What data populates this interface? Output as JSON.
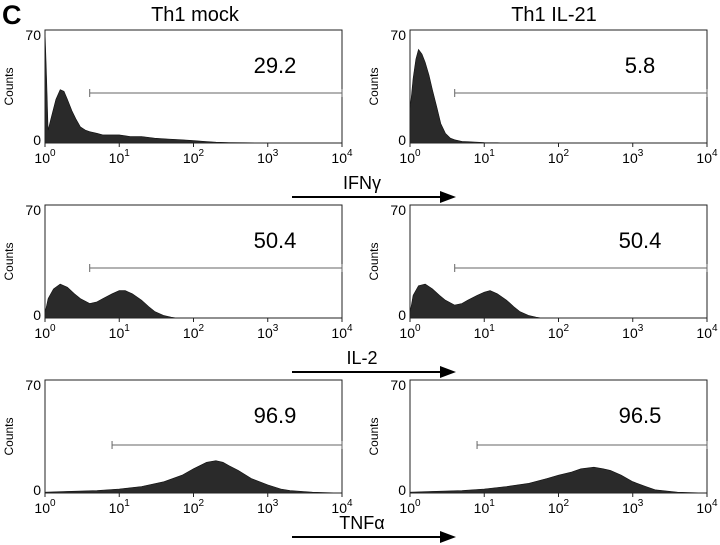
{
  "panel_label": "C",
  "columns": [
    "Th1 mock",
    "Th1 IL-21"
  ],
  "marker_labels": [
    "IFNγ",
    "IL-2",
    "TNFα"
  ],
  "axis": {
    "y_label": "Counts",
    "y_ticks": [
      "0",
      "70"
    ],
    "x_ticks": [
      "10^0",
      "10^1",
      "10^2",
      "10^3",
      "10^4"
    ]
  },
  "chart_data": [
    {
      "type": "area",
      "row": 0,
      "col": 0,
      "marker": "IFNγ",
      "condition": "Th1 mock",
      "xscale": "log",
      "xlim": [
        1,
        10000
      ],
      "ylim": [
        0,
        70
      ],
      "ylabel": "Counts",
      "gate_percent": "29.2",
      "gate_range": [
        4,
        10000
      ],
      "x": [
        1.0,
        1.05,
        1.1,
        1.2,
        1.4,
        1.6,
        1.8,
        2.0,
        2.3,
        2.6,
        3.0,
        3.5,
        4.0,
        5,
        6,
        8,
        10,
        14,
        20,
        30,
        45,
        70,
        100,
        140,
        200,
        300,
        500,
        1000,
        10000
      ],
      "values": [
        70,
        40,
        8,
        15,
        27,
        33,
        32,
        27,
        20,
        15,
        10,
        8,
        7,
        6,
        5,
        5,
        5,
        4,
        4,
        3,
        2.5,
        2,
        1.5,
        1,
        0.5,
        0.3,
        0.2,
        0,
        0
      ]
    },
    {
      "type": "area",
      "row": 0,
      "col": 1,
      "marker": "IFNγ",
      "condition": "Th1 IL-21",
      "xscale": "log",
      "xlim": [
        1,
        10000
      ],
      "ylim": [
        0,
        70
      ],
      "ylabel": "Counts",
      "gate_percent": "5.8",
      "gate_range": [
        4,
        10000
      ],
      "x": [
        1.0,
        1.1,
        1.2,
        1.3,
        1.45,
        1.6,
        1.8,
        2.0,
        2.3,
        2.6,
        3.0,
        3.5,
        4.0,
        5,
        6,
        8,
        10,
        15,
        20,
        30,
        10000
      ],
      "values": [
        20,
        40,
        52,
        58,
        55,
        50,
        42,
        33,
        22,
        12,
        6,
        3,
        2,
        1,
        0.8,
        0.5,
        0.3,
        0.2,
        0,
        0,
        0
      ]
    },
    {
      "type": "area",
      "row": 1,
      "col": 0,
      "marker": "IL-2",
      "condition": "Th1 mock",
      "xscale": "log",
      "xlim": [
        1,
        10000
      ],
      "ylim": [
        0,
        70
      ],
      "ylabel": "Counts",
      "gate_percent": "50.4",
      "gate_range": [
        4,
        10000
      ],
      "x": [
        1.0,
        1.1,
        1.3,
        1.6,
        2.0,
        2.5,
        3.0,
        4.0,
        5,
        6,
        8,
        10,
        12,
        15,
        20,
        25,
        30,
        40,
        50,
        60,
        10000
      ],
      "values": [
        3,
        12,
        18,
        21,
        19,
        15,
        12,
        9,
        10,
        12,
        15,
        17,
        17,
        15,
        11,
        7,
        4,
        1.5,
        0.5,
        0,
        0
      ]
    },
    {
      "type": "area",
      "row": 1,
      "col": 1,
      "marker": "IL-2",
      "condition": "Th1 IL-21",
      "xscale": "log",
      "xlim": [
        1,
        10000
      ],
      "ylim": [
        0,
        70
      ],
      "ylabel": "Counts",
      "gate_percent": "50.4",
      "gate_range": [
        4,
        10000
      ],
      "x": [
        1.0,
        1.1,
        1.3,
        1.6,
        2.0,
        2.5,
        3.0,
        4.0,
        5,
        6,
        8,
        10,
        12,
        15,
        20,
        25,
        30,
        40,
        50,
        60,
        10000
      ],
      "values": [
        3,
        14,
        20,
        21,
        18,
        14,
        11,
        8,
        9,
        11,
        14,
        16,
        17,
        15,
        11,
        7,
        4,
        1.5,
        0.5,
        0,
        0
      ]
    },
    {
      "type": "area",
      "row": 2,
      "col": 0,
      "marker": "TNFα",
      "condition": "Th1 mock",
      "xscale": "log",
      "xlim": [
        1,
        10000
      ],
      "ylim": [
        0,
        70
      ],
      "ylabel": "Counts",
      "gate_percent": "96.9",
      "gate_range": [
        8,
        10000
      ],
      "x": [
        1,
        2,
        5,
        10,
        20,
        40,
        70,
        100,
        150,
        200,
        250,
        300,
        400,
        600,
        1000,
        1500,
        2000,
        4000,
        10000
      ],
      "values": [
        0.5,
        1,
        1.5,
        2.5,
        4,
        7,
        11,
        15,
        19,
        20,
        19,
        17,
        14,
        9,
        5,
        2.5,
        1.5,
        0.5,
        0
      ]
    },
    {
      "type": "area",
      "row": 2,
      "col": 1,
      "marker": "TNFα",
      "condition": "Th1 IL-21",
      "xscale": "log",
      "xlim": [
        1,
        10000
      ],
      "ylim": [
        0,
        70
      ],
      "ylabel": "Counts",
      "gate_percent": "96.5",
      "gate_range": [
        8,
        10000
      ],
      "x": [
        1,
        2,
        5,
        10,
        20,
        40,
        70,
        100,
        150,
        200,
        300,
        400,
        500,
        700,
        1000,
        1500,
        2000,
        4000,
        10000
      ],
      "values": [
        0.5,
        1,
        1.5,
        2.5,
        4,
        6,
        9,
        11,
        13,
        15,
        16,
        15,
        14,
        11,
        7,
        4,
        2,
        0.5,
        0
      ]
    }
  ]
}
